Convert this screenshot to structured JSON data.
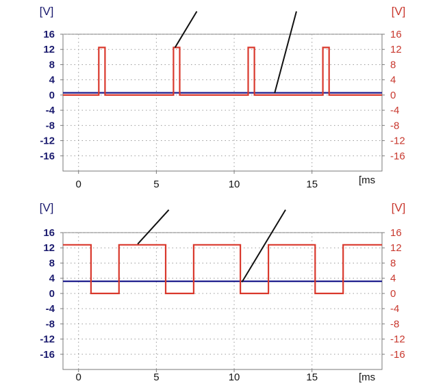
{
  "colors": {
    "left_axis": "#1a1a6e",
    "right_axis": "#c8372d",
    "series_red": "#d9382c",
    "series_blue": "#1c1c8c",
    "grid": "#9a9a9a",
    "frame": "#7a7a7a",
    "annotation": "#111111"
  },
  "chart_data": [
    {
      "type": "line",
      "title": "",
      "ylabel_left": "[V]",
      "ylabel_right": "[V]",
      "xlabel_unit": "[ms",
      "x_ticks": [
        "0",
        "5",
        "10",
        "15"
      ],
      "x_tick_values": [
        0,
        5,
        10,
        15
      ],
      "y_ticks": [
        "16",
        "12",
        "8",
        "4",
        "0",
        "-4",
        "-8",
        "-12",
        "-16"
      ],
      "y_tick_values": [
        16,
        12,
        8,
        4,
        0,
        -4,
        -8,
        -12,
        -16
      ],
      "xlim": [
        -1,
        19.5
      ],
      "ylim": [
        -20,
        16
      ],
      "grid": true,
      "series": [
        {
          "color": "#d9382c",
          "x": [
            -1,
            1.3,
            1.3,
            1.7,
            1.7,
            6.1,
            6.1,
            6.5,
            6.5,
            10.9,
            10.9,
            11.3,
            11.3,
            15.7,
            15.7,
            16.1,
            16.1,
            19.5
          ],
          "y": [
            0,
            0,
            12.5,
            12.5,
            0,
            0,
            12.5,
            12.5,
            0,
            0,
            12.5,
            12.5,
            0,
            0,
            12.5,
            12.5,
            0,
            0
          ]
        },
        {
          "color": "#1c1c8c",
          "x": [
            -1,
            19.5
          ],
          "y": [
            0.6,
            0.6
          ]
        }
      ],
      "annotations": [
        {
          "from": [
            6.2,
            12.5
          ],
          "to": [
            7.6,
            22
          ]
        },
        {
          "from": [
            12.6,
            0.5
          ],
          "to": [
            14.0,
            22
          ]
        }
      ]
    },
    {
      "type": "line",
      "title": "",
      "ylabel_left": "[V]",
      "ylabel_right": "[V]",
      "xlabel_unit": "[ms",
      "x_ticks": [
        "0",
        "5",
        "10",
        "15"
      ],
      "x_tick_values": [
        0,
        5,
        10,
        15
      ],
      "y_ticks": [
        "16",
        "12",
        "8",
        "4",
        "0",
        "-4",
        "-8",
        "-12",
        "-16"
      ],
      "y_tick_values": [
        16,
        12,
        8,
        4,
        0,
        -4,
        -8,
        -12,
        -16
      ],
      "xlim": [
        -1,
        19.5
      ],
      "ylim": [
        -20,
        16
      ],
      "grid": true,
      "series": [
        {
          "color": "#d9382c",
          "x": [
            -1,
            0.8,
            0.8,
            2.6,
            2.6,
            5.6,
            5.6,
            7.4,
            7.4,
            10.4,
            10.4,
            12.2,
            12.2,
            15.2,
            15.2,
            17.0,
            17.0,
            19.5
          ],
          "y": [
            12.8,
            12.8,
            0,
            0,
            12.8,
            12.8,
            0,
            0,
            12.8,
            12.8,
            0,
            0,
            12.8,
            12.8,
            0,
            0,
            12.8,
            12.8
          ]
        },
        {
          "color": "#1c1c8c",
          "x": [
            -1,
            19.5
          ],
          "y": [
            3.2,
            3.2
          ]
        }
      ],
      "annotations": [
        {
          "from": [
            3.8,
            13
          ],
          "to": [
            5.8,
            22
          ]
        },
        {
          "from": [
            10.5,
            3
          ],
          "to": [
            13.3,
            22
          ]
        }
      ]
    }
  ]
}
